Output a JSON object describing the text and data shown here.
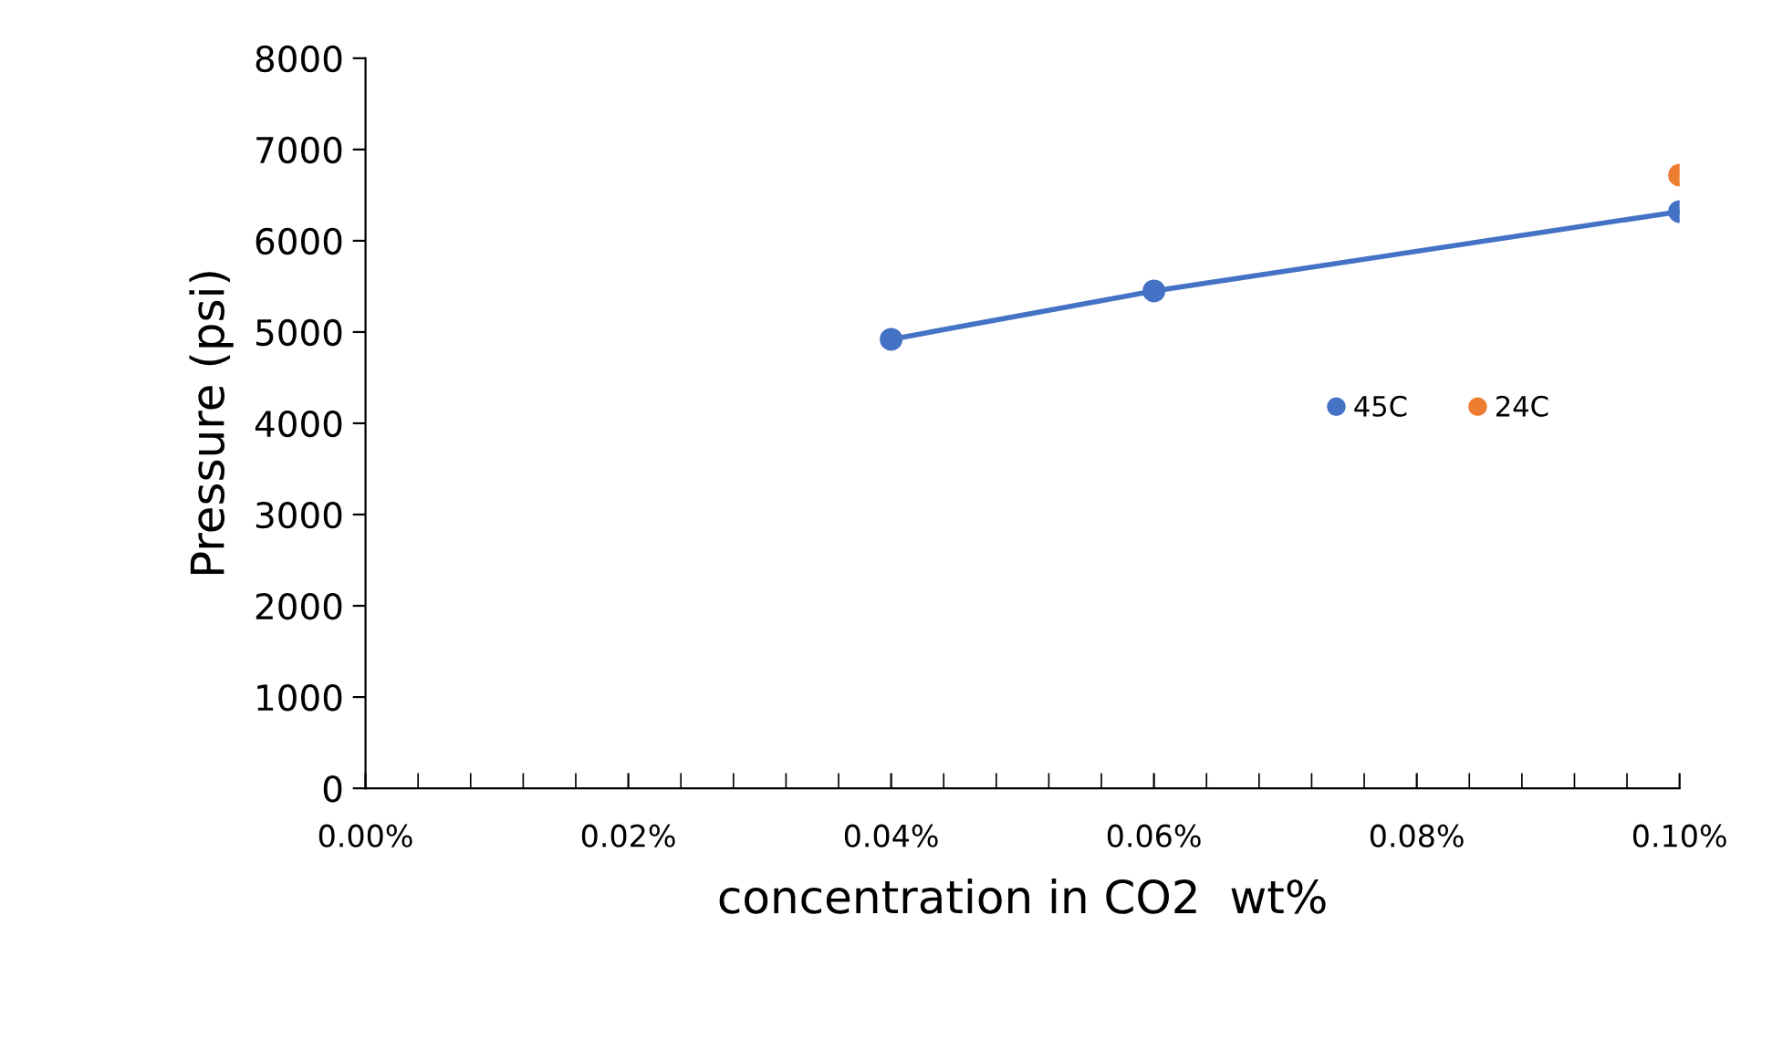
{
  "chart_data": {
    "type": "line",
    "xlabel": "concentration in CO2  wt%",
    "ylabel": "Pressure (psi)",
    "series": [
      {
        "name": "45C",
        "color": "#4472c4",
        "x": [
          0.0004,
          0.0006,
          0.001
        ],
        "values": [
          4920,
          5450,
          6320
        ]
      },
      {
        "name": "24C",
        "type": "scatter",
        "color": "#ed7d31",
        "x": [
          0.001
        ],
        "values": [
          6720
        ]
      }
    ],
    "xlim": [
      0,
      0.001
    ],
    "ylim": [
      0,
      8000
    ],
    "xticks": [
      {
        "value": 0,
        "label": "0.00%"
      },
      {
        "value": 0.0002,
        "label": "0.02%"
      },
      {
        "value": 0.0004,
        "label": "0.04%"
      },
      {
        "value": 0.0006,
        "label": "0.06%"
      },
      {
        "value": 0.0008,
        "label": "0.08%"
      },
      {
        "value": 0.001,
        "label": "0.10%"
      }
    ],
    "yticks": [
      0,
      1000,
      2000,
      3000,
      4000,
      5000,
      6000,
      7000,
      8000
    ],
    "grid": false,
    "legend": "right",
    "marker": "circle"
  }
}
